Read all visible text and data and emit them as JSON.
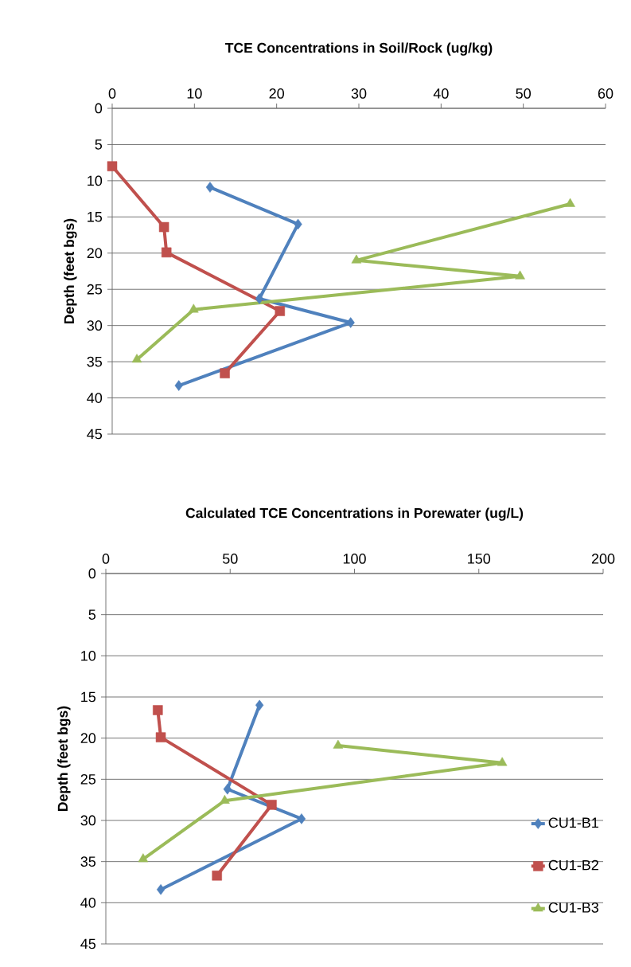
{
  "chart_data": [
    {
      "type": "line",
      "title": "TCE Concentrations in Soil/Rock (ug/kg)",
      "ylabel": "Depth (feet bgs)",
      "xlim": [
        0,
        60
      ],
      "xticks": [
        0,
        10,
        20,
        30,
        40,
        50,
        60
      ],
      "ylim": [
        45,
        0
      ],
      "yticks": [
        0,
        5,
        10,
        15,
        20,
        25,
        30,
        35,
        40,
        45
      ],
      "grid": "y",
      "series": [
        {
          "color": "#4f81bd",
          "marker": "diamond",
          "x": [
            11.9,
            22.6,
            17.9,
            29.0,
            8.1
          ],
          "values": [
            10.9,
            16.0,
            26.3,
            29.6,
            38.3
          ]
        },
        {
          "color": "#c0504d",
          "marker": "square",
          "x": [
            0,
            6.3,
            6.6,
            20.4,
            13.7
          ],
          "values": [
            8.0,
            16.4,
            19.9,
            28.0,
            36.6
          ]
        },
        {
          "color": "#9bbb59",
          "marker": "triangle",
          "x": [
            55.7,
            29.7,
            49.6,
            9.9,
            3.0
          ],
          "values": [
            13.2,
            21.0,
            23.2,
            27.8,
            34.7
          ]
        }
      ]
    },
    {
      "type": "line",
      "title": "Calculated TCE Concentrations in Porewater (ug/L)",
      "ylabel": "Depth (feet bgs)",
      "xlim": [
        0,
        200
      ],
      "xticks": [
        0,
        50,
        100,
        150,
        200
      ],
      "ylim": [
        45,
        0
      ],
      "yticks": [
        0,
        5,
        10,
        15,
        20,
        25,
        30,
        35,
        40,
        45
      ],
      "grid": "y",
      "legend": "right",
      "series": [
        {
          "name": "CU1-B1",
          "color": "#4f81bd",
          "marker": "diamond",
          "x": [
            61.8,
            48.9,
            78.7,
            22.1
          ],
          "values": [
            16.0,
            26.2,
            29.8,
            38.4
          ]
        },
        {
          "name": "CU1-B2",
          "color": "#c0504d",
          "marker": "square",
          "x": [
            20.9,
            22.1,
            66.7,
            44.7
          ],
          "values": [
            16.6,
            19.9,
            28.1,
            36.7
          ]
        },
        {
          "name": "CU1-B3",
          "color": "#9bbb59",
          "marker": "triangle",
          "x": [
            93.4,
            159.4,
            47.8,
            15.0
          ],
          "values": [
            20.9,
            23.0,
            27.6,
            34.7
          ]
        }
      ]
    }
  ]
}
